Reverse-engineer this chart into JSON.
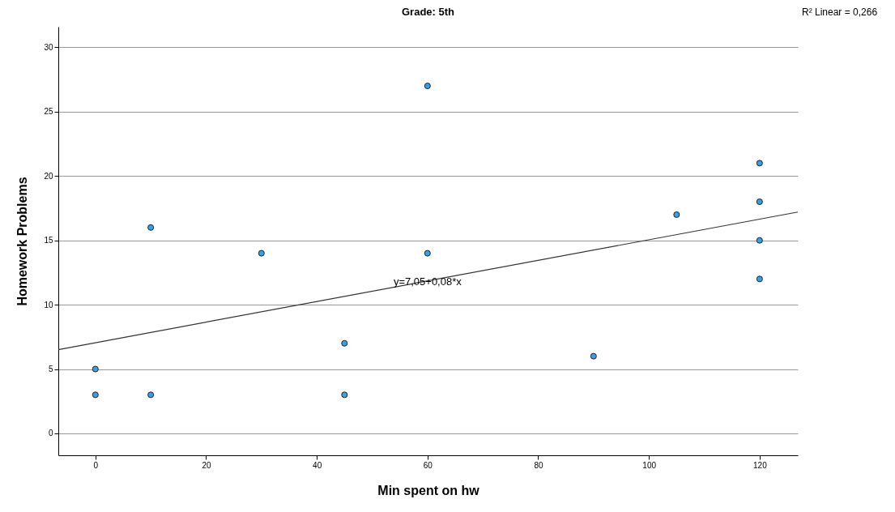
{
  "chart_data": {
    "type": "scatter",
    "title": "Grade: 5th",
    "xlabel": "Min spent on hw",
    "ylabel": "Homework Problems",
    "series": [
      {
        "type": "scatter",
        "color": "#3aa0e6",
        "x": [
          0,
          0,
          10,
          10,
          30,
          45,
          45,
          60,
          60,
          90,
          105,
          120,
          120,
          120,
          120
        ],
        "values": [
          5,
          3,
          16,
          3,
          14,
          7,
          3,
          27,
          14,
          6,
          17,
          21,
          18,
          15,
          12
        ]
      },
      {
        "type": "line",
        "marker": "none",
        "color": "#333333",
        "x": [
          -6.7,
          126.9
        ],
        "values": [
          6.51,
          17.2
        ]
      }
    ],
    "xlim": [
      -6.7,
      126.9
    ],
    "xticks": [
      0,
      20,
      40,
      60,
      80,
      100,
      120
    ],
    "ylim": [
      -1.7,
      31.6
    ],
    "yticks": [
      0,
      5,
      10,
      15,
      20,
      25,
      30
    ],
    "grid": "y",
    "marker": "circle",
    "annotations": [
      {
        "text": "y=7,05+0,08*x",
        "x": 60,
        "y": 11.8
      },
      "R² Linear = 0,266"
    ]
  }
}
